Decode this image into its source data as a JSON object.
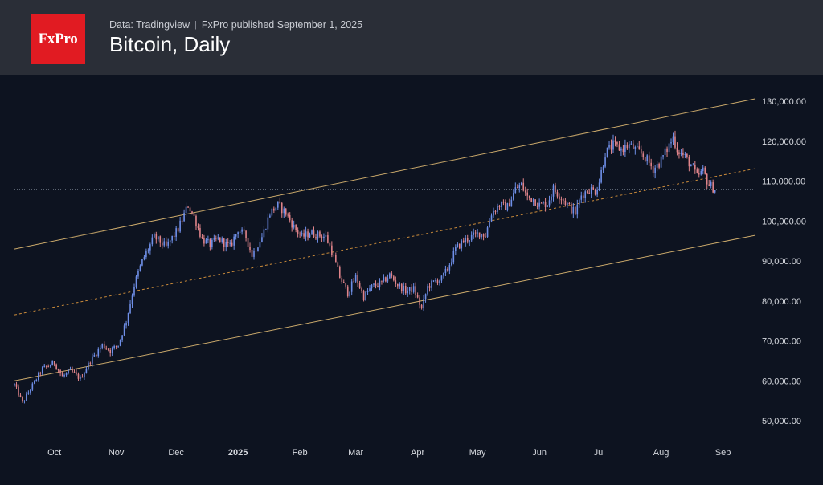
{
  "header": {
    "logo_text": "FxPro",
    "source": "Data: Tradingview",
    "separator": "|",
    "published": "FxPro published September 1, 2025",
    "title": "Bitcoin, Daily"
  },
  "colors": {
    "header_bg": "#2a2e37",
    "chart_bg": "#0d1320",
    "logo_bg": "#e11b22",
    "channel_line": "#c9a86a",
    "midline": "#c98a3a",
    "candle_up": "#6f8fe8",
    "candle_down": "#e0848a",
    "axis_text": "#d6d9df",
    "current_price_line": "#5b6472"
  },
  "chart_data": {
    "type": "candlestick",
    "title": "Bitcoin, Daily",
    "xlabel": "",
    "ylabel": "",
    "ylim": [
      45000,
      132000
    ],
    "y_ticks": [
      {
        "value": 130000,
        "label": "130,000.00"
      },
      {
        "value": 120000,
        "label": "120,000.00"
      },
      {
        "value": 110000,
        "label": "110,000.00"
      },
      {
        "value": 100000,
        "label": "100,000.00"
      },
      {
        "value": 90000,
        "label": "90,000.00"
      },
      {
        "value": 80000,
        "label": "80,000.00"
      },
      {
        "value": 70000,
        "label": "70,000.00"
      },
      {
        "value": 60000,
        "label": "60,000.00"
      },
      {
        "value": 50000,
        "label": "50,000.00"
      }
    ],
    "x_ticks": [
      {
        "day": 20,
        "label": "Oct",
        "bold": false
      },
      {
        "day": 51,
        "label": "Nov",
        "bold": false
      },
      {
        "day": 81,
        "label": "Dec",
        "bold": false
      },
      {
        "day": 112,
        "label": "2025",
        "bold": true
      },
      {
        "day": 143,
        "label": "Feb",
        "bold": false
      },
      {
        "day": 171,
        "label": "Mar",
        "bold": false
      },
      {
        "day": 202,
        "label": "Apr",
        "bold": false
      },
      {
        "day": 232,
        "label": "May",
        "bold": false
      },
      {
        "day": 263,
        "label": "Jun",
        "bold": false
      },
      {
        "day": 293,
        "label": "Jul",
        "bold": false
      },
      {
        "day": 324,
        "label": "Aug",
        "bold": false
      },
      {
        "day": 355,
        "label": "Sep",
        "bold": false
      }
    ],
    "x_range_days": [
      0,
      360
    ],
    "current_price": 108000,
    "channel": {
      "upper": {
        "start": [
          0,
          93000
        ],
        "end": [
          370,
          130500
        ]
      },
      "middle": {
        "start": [
          0,
          76500
        ],
        "end": [
          370,
          113000
        ]
      },
      "lower": {
        "start": [
          0,
          60000
        ],
        "end": [
          370,
          96300
        ]
      }
    },
    "price_anchors": [
      [
        0,
        59000
      ],
      [
        4,
        54500
      ],
      [
        8,
        58000
      ],
      [
        14,
        63000
      ],
      [
        20,
        64500
      ],
      [
        24,
        61000
      ],
      [
        28,
        62500
      ],
      [
        33,
        60500
      ],
      [
        38,
        65000
      ],
      [
        44,
        69000
      ],
      [
        48,
        67500
      ],
      [
        52,
        69000
      ],
      [
        56,
        75000
      ],
      [
        60,
        84000
      ],
      [
        64,
        90000
      ],
      [
        70,
        96000
      ],
      [
        76,
        93500
      ],
      [
        82,
        98000
      ],
      [
        87,
        104000
      ],
      [
        90,
        101000
      ],
      [
        94,
        95500
      ],
      [
        98,
        94000
      ],
      [
        102,
        95500
      ],
      [
        108,
        93500
      ],
      [
        112,
        98000
      ],
      [
        116,
        96000
      ],
      [
        119,
        91500
      ],
      [
        124,
        96000
      ],
      [
        128,
        102000
      ],
      [
        132,
        104000
      ],
      [
        136,
        102000
      ],
      [
        140,
        98500
      ],
      [
        144,
        96000
      ],
      [
        148,
        97000
      ],
      [
        152,
        96500
      ],
      [
        156,
        96000
      ],
      [
        159,
        92500
      ],
      [
        163,
        86000
      ],
      [
        167,
        82000
      ],
      [
        171,
        86000
      ],
      [
        175,
        81000
      ],
      [
        179,
        83500
      ],
      [
        184,
        84500
      ],
      [
        188,
        86500
      ],
      [
        192,
        84000
      ],
      [
        196,
        82500
      ],
      [
        200,
        83000
      ],
      [
        204,
        78000
      ],
      [
        207,
        83500
      ],
      [
        211,
        85000
      ],
      [
        214,
        85500
      ],
      [
        217,
        88000
      ],
      [
        221,
        93000
      ],
      [
        225,
        95000
      ],
      [
        229,
        96000
      ],
      [
        233,
        97000
      ],
      [
        236,
        96500
      ],
      [
        239,
        102000
      ],
      [
        243,
        104000
      ],
      [
        247,
        103500
      ],
      [
        251,
        108000
      ],
      [
        254,
        109000
      ],
      [
        257,
        106000
      ],
      [
        260,
        105500
      ],
      [
        263,
        104000
      ],
      [
        267,
        104500
      ],
      [
        270,
        108000
      ],
      [
        274,
        106000
      ],
      [
        278,
        103500
      ],
      [
        281,
        102000
      ],
      [
        284,
        106500
      ],
      [
        288,
        108000
      ],
      [
        291,
        107500
      ],
      [
        293,
        110000
      ],
      [
        296,
        117000
      ],
      [
        300,
        119000
      ],
      [
        304,
        118000
      ],
      [
        308,
        119000
      ],
      [
        312,
        117500
      ],
      [
        316,
        116000
      ],
      [
        320,
        113000
      ],
      [
        323,
        114500
      ],
      [
        327,
        118000
      ],
      [
        330,
        121000
      ],
      [
        332,
        118000
      ],
      [
        336,
        116000
      ],
      [
        339,
        114000
      ],
      [
        342,
        111000
      ],
      [
        345,
        112500
      ],
      [
        348,
        109000
      ],
      [
        351,
        108000
      ]
    ]
  }
}
